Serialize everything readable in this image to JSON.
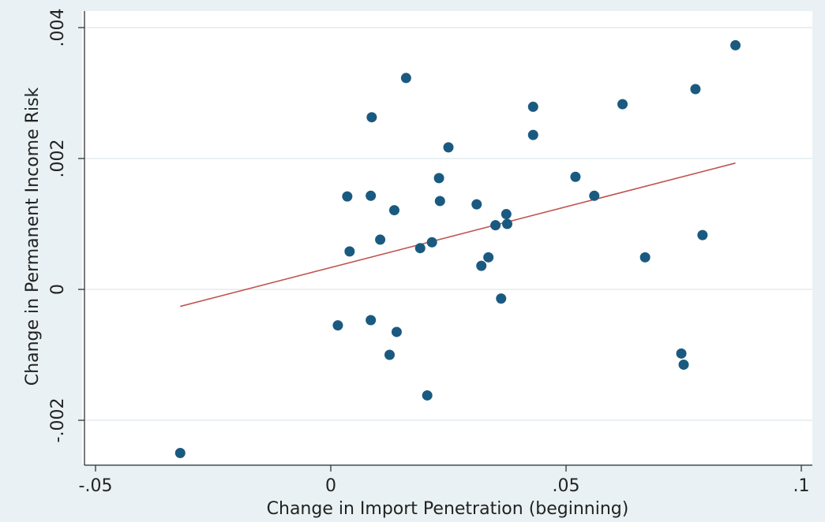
{
  "chart_data": {
    "type": "scatter",
    "title": "",
    "xlabel": "Change in Import Penetration (beginning)",
    "ylabel": "Change in Permanent Income Risk",
    "xlim": [
      -0.05,
      0.1
    ],
    "ylim": [
      -0.0027,
      0.004
    ],
    "x_ticks": [
      {
        "value": -0.05,
        "label": "-.05"
      },
      {
        "value": 0,
        "label": "0"
      },
      {
        "value": 0.05,
        "label": ".05"
      },
      {
        "value": 0.1,
        "label": ".1"
      }
    ],
    "y_ticks": [
      {
        "value": -0.002,
        "label": "-.002"
      },
      {
        "value": 0,
        "label": "0"
      },
      {
        "value": 0.002,
        "label": ".002"
      },
      {
        "value": 0.004,
        "label": ".004"
      }
    ],
    "grid": "horizontal",
    "legend": "none",
    "colors": {
      "points": "#1a5a80",
      "fit_line": "#c0544f",
      "plot_bg": "#ffffff",
      "outer_bg": "#e9f1f4",
      "grid": "#e4ecef"
    },
    "fit_line": {
      "x": [
        -0.032,
        0.086
      ],
      "y": [
        -0.00026,
        0.00193
      ]
    },
    "points": [
      {
        "x": -0.032,
        "y": -0.0025
      },
      {
        "x": 0.0015,
        "y": -0.00055
      },
      {
        "x": 0.0035,
        "y": 0.00142
      },
      {
        "x": 0.004,
        "y": 0.00058
      },
      {
        "x": 0.0085,
        "y": -0.00047
      },
      {
        "x": 0.0085,
        "y": 0.00143
      },
      {
        "x": 0.0087,
        "y": 0.00263
      },
      {
        "x": 0.0105,
        "y": 0.00076
      },
      {
        "x": 0.0125,
        "y": -0.001
      },
      {
        "x": 0.0135,
        "y": 0.00121
      },
      {
        "x": 0.014,
        "y": -0.00065
      },
      {
        "x": 0.016,
        "y": 0.00323
      },
      {
        "x": 0.019,
        "y": 0.00063
      },
      {
        "x": 0.0205,
        "y": -0.00162
      },
      {
        "x": 0.0215,
        "y": 0.00072
      },
      {
        "x": 0.023,
        "y": 0.0017
      },
      {
        "x": 0.0232,
        "y": 0.00135
      },
      {
        "x": 0.025,
        "y": 0.00217
      },
      {
        "x": 0.031,
        "y": 0.0013
      },
      {
        "x": 0.032,
        "y": 0.00036
      },
      {
        "x": 0.0335,
        "y": 0.00049
      },
      {
        "x": 0.035,
        "y": 0.00098
      },
      {
        "x": 0.0362,
        "y": -0.00014
      },
      {
        "x": 0.0373,
        "y": 0.00115
      },
      {
        "x": 0.0375,
        "y": 0.001
      },
      {
        "x": 0.043,
        "y": 0.00279
      },
      {
        "x": 0.043,
        "y": 0.00236
      },
      {
        "x": 0.052,
        "y": 0.00172
      },
      {
        "x": 0.056,
        "y": 0.00143
      },
      {
        "x": 0.062,
        "y": 0.00283
      },
      {
        "x": 0.0668,
        "y": 0.00049
      },
      {
        "x": 0.0745,
        "y": -0.00098
      },
      {
        "x": 0.075,
        "y": -0.00115
      },
      {
        "x": 0.0775,
        "y": 0.00306
      },
      {
        "x": 0.079,
        "y": 0.00083
      },
      {
        "x": 0.086,
        "y": 0.00373
      }
    ]
  }
}
